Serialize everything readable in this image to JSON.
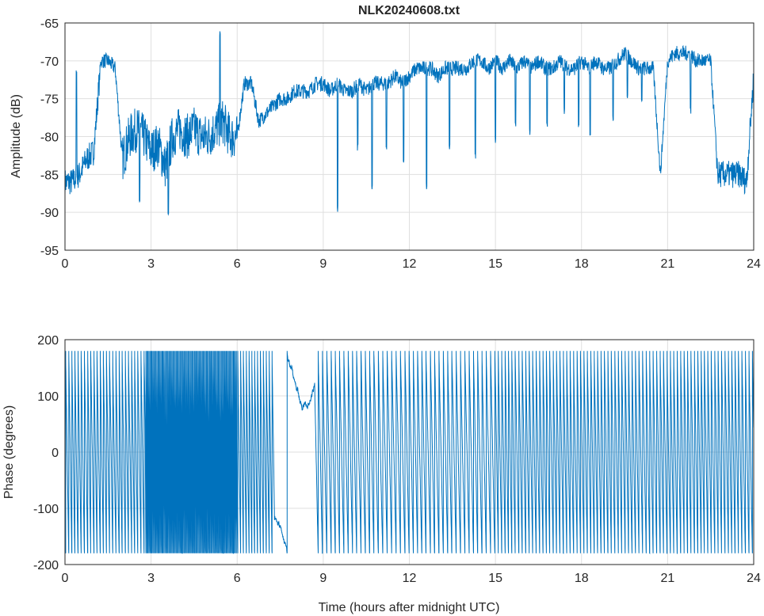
{
  "chart_data": [
    {
      "type": "line",
      "title": "NLK20240608.txt",
      "xlabel": "",
      "ylabel": "Amplitude (dB)",
      "xlim": [
        0,
        24
      ],
      "ylim": [
        -95,
        -65
      ],
      "xticks": [
        0,
        3,
        6,
        9,
        12,
        15,
        18,
        21,
        24
      ],
      "yticks": [
        -65,
        -70,
        -75,
        -80,
        -85,
        -90,
        -95
      ],
      "grid": true,
      "color": "#0072BD",
      "x_step_hours": 0.25,
      "values": [
        -86,
        -86,
        -85,
        -83,
        -82,
        -70,
        -70,
        -71,
        -83,
        -80,
        -79,
        -80,
        -82,
        -81,
        -84,
        -80,
        -79,
        -80,
        -79,
        -80,
        -80,
        -79,
        -78,
        -80,
        -80,
        -73,
        -73,
        -78,
        -77,
        -76,
        -75,
        -75,
        -74,
        -74,
        -74,
        -73,
        -73,
        -74,
        -73,
        -74,
        -74,
        -73,
        -74,
        -73,
        -73,
        -73,
        -72,
        -73,
        -72,
        -71,
        -71,
        -71,
        -72,
        -71,
        -71,
        -71,
        -71,
        -70,
        -70,
        -71,
        -70,
        -71,
        -70,
        -71,
        -70,
        -71,
        -70,
        -71,
        -71,
        -70,
        -71,
        -71,
        -70,
        -71,
        -70,
        -71,
        -71,
        -70,
        -69,
        -70,
        -71,
        -71,
        -71,
        -85,
        -70,
        -69,
        -69,
        -69,
        -70,
        -70,
        -70,
        -85,
        -85,
        -85,
        -85,
        -86,
        -72
      ],
      "spikes": [
        [
          0.4,
          -72
        ],
        [
          2.6,
          -89
        ],
        [
          3.6,
          -91
        ],
        [
          5.4,
          -67
        ],
        [
          9.5,
          -90
        ],
        [
          10.2,
          -82
        ],
        [
          10.7,
          -87
        ],
        [
          11.2,
          -82
        ],
        [
          11.8,
          -84
        ],
        [
          12.6,
          -87
        ],
        [
          13.4,
          -82
        ],
        [
          14.3,
          -83
        ],
        [
          15.0,
          -81
        ],
        [
          15.7,
          -79
        ],
        [
          16.2,
          -80
        ],
        [
          16.8,
          -79
        ],
        [
          17.4,
          -77
        ],
        [
          17.9,
          -79
        ],
        [
          18.3,
          -80
        ],
        [
          19.1,
          -78
        ],
        [
          19.6,
          -75
        ],
        [
          20.1,
          -76
        ],
        [
          21.8,
          -77
        ]
      ]
    },
    {
      "type": "line",
      "title": "",
      "xlabel": "Time (hours after midnight UTC)",
      "ylabel": "Phase (degrees)",
      "xlim": [
        0,
        24
      ],
      "ylim": [
        -200,
        200
      ],
      "xticks": [
        0,
        3,
        6,
        9,
        12,
        15,
        18,
        21,
        24
      ],
      "yticks": [
        200,
        100,
        0,
        -100,
        -200
      ],
      "grid": true,
      "color": "#0072BD",
      "wrap_range": [
        -180,
        180
      ],
      "segments": [
        {
          "start": 0,
          "end": 2.8,
          "hours_per_cycle": 0.11
        },
        {
          "start": 2.8,
          "end": 6,
          "hours_per_cycle": 0.035
        },
        {
          "start": 6,
          "end": 7.3,
          "hours_per_cycle": 0.1
        },
        {
          "start": 7.3,
          "end": 8.7,
          "hours_per_cycle": 1.4
        },
        {
          "start": 8.7,
          "end": 15,
          "hours_per_cycle": 0.15
        },
        {
          "start": 15,
          "end": 24,
          "hours_per_cycle": 0.12
        }
      ]
    }
  ]
}
